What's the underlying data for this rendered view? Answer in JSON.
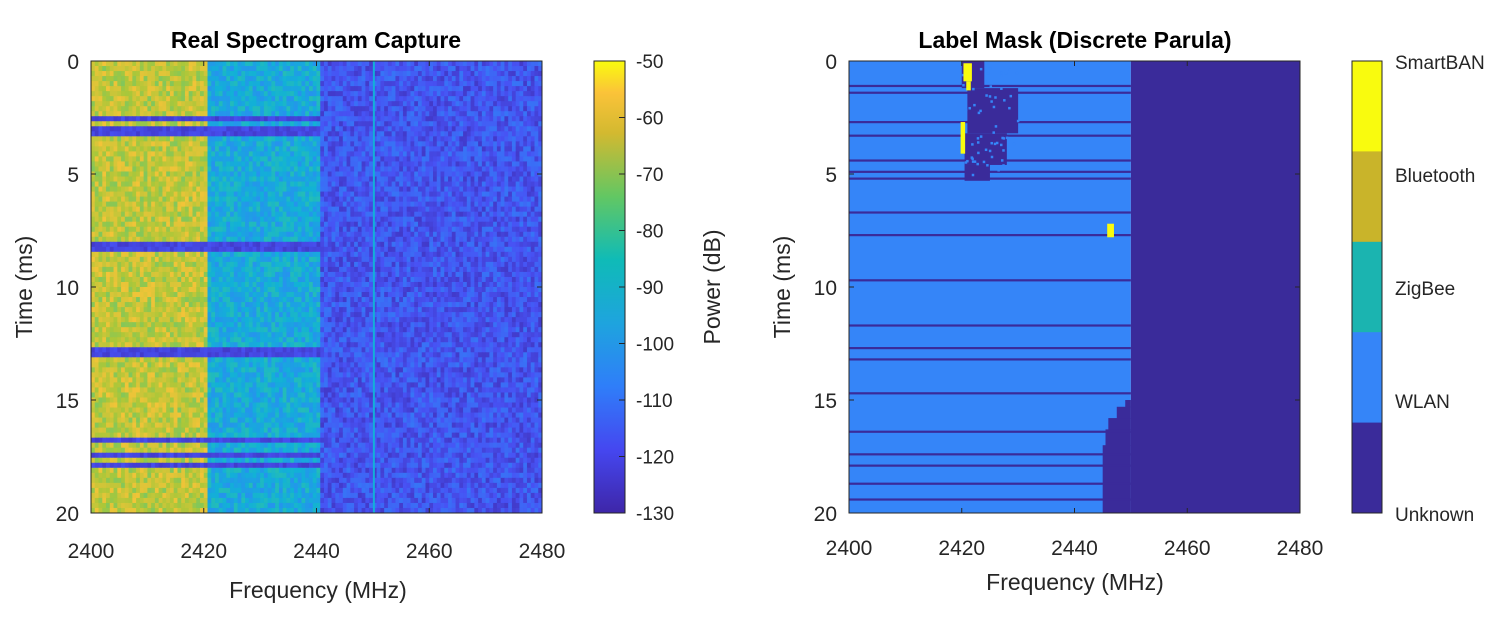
{
  "chart_data": [
    {
      "type": "heatmap",
      "title": "Real Spectrogram Capture",
      "xlabel": "Frequency (MHz)",
      "ylabel": "Time (ms)",
      "xlim": [
        2400,
        2480
      ],
      "ylim": [
        0,
        20
      ],
      "y_reversed": true,
      "xticks": [
        "2400",
        "2420",
        "2440",
        "2460",
        "2480"
      ],
      "yticks": [
        "0",
        "5",
        "10",
        "15",
        "20"
      ],
      "colormap": "parula",
      "colorbar": {
        "label": "Power (dB)",
        "range": [
          -130,
          -50
        ],
        "ticks": [
          "-50",
          "-60",
          "-70",
          "-80",
          "-90",
          "-100",
          "-110",
          "-120",
          "-130"
        ]
      },
      "bands": [
        {
          "freq": [
            2400,
            2421
          ],
          "power_db": -70
        },
        {
          "freq": [
            2421,
            2441
          ],
          "power_db": -97
        },
        {
          "freq": [
            2441,
            2480
          ],
          "power_db": -118
        }
      ],
      "dropout_rows_ms": [
        2.6,
        2.9,
        3.2,
        8.1,
        8.4,
        12.7,
        13.0,
        16.8,
        17.5,
        17.8
      ],
      "vertical_line_mhz": 2450
    },
    {
      "type": "heatmap",
      "title": "Label Mask (Discrete Parula)",
      "xlabel": "Frequency (MHz)",
      "ylabel": "Time (ms)",
      "xlim": [
        2400,
        2480
      ],
      "ylim": [
        0,
        20
      ],
      "y_reversed": true,
      "xticks": [
        "2400",
        "2420",
        "2440",
        "2460",
        "2480"
      ],
      "yticks": [
        "0",
        "5",
        "10",
        "15",
        "20"
      ],
      "colorbar": {
        "classes": [
          {
            "name": "SmartBAN",
            "color": "#f9fb0e"
          },
          {
            "name": "Bluetooth",
            "color": "#c9b42a"
          },
          {
            "name": "ZigBee",
            "color": "#1bb4b0"
          },
          {
            "name": "WLAN",
            "color": "#3585f8"
          },
          {
            "name": "Unknown",
            "color": "#3a2b9a"
          }
        ]
      },
      "wlan_region_mhz": [
        2400,
        2450
      ],
      "unknown_region_mhz": [
        2450,
        2480
      ],
      "unknown_rows_ms": [
        1.1,
        1.4,
        2.7,
        3.3,
        4.4,
        4.9,
        5.2,
        6.7,
        7.7,
        9.7,
        11.7,
        12.7,
        13.2,
        14.7,
        16.4,
        17.4,
        17.9,
        18.7,
        19.4
      ]
    }
  ]
}
